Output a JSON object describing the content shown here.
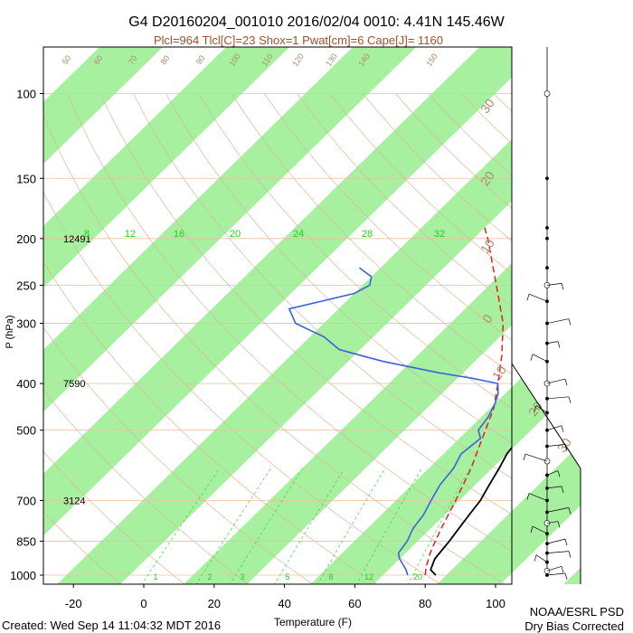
{
  "chart_data": {
    "type": "skew-t",
    "title": "G4 D20160204_001010 2016/02/04 0010:  4.41N 145.46W",
    "subtitle": "Plcl=964 Tlcl[C]=23 Shox=1 Pwat[cm]=6 Cape[J]= 1160",
    "xlabel": "Temperature (F)",
    "ylabel": "P (hPa)",
    "x_ticks": [
      "-20",
      "0",
      "20",
      "40",
      "60",
      "80",
      "100"
    ],
    "x_tick_values": [
      -20,
      0,
      20,
      40,
      60,
      80,
      100
    ],
    "y_ticks": [
      "100",
      "150",
      "200",
      "250",
      "300",
      "400",
      "500",
      "700",
      "850",
      "1000"
    ],
    "y_tick_values": [
      100,
      150,
      200,
      250,
      300,
      400,
      500,
      700,
      850,
      1000
    ],
    "xlim": [
      -29,
      113
    ],
    "ylim": [
      1050,
      100
    ],
    "height_labels": [
      {
        "pressure": 200,
        "label": "12491"
      },
      {
        "pressure": 400,
        "label": "7590"
      },
      {
        "pressure": 700,
        "label": "3124"
      }
    ],
    "skewed_temp_labels": [
      "8",
      "12",
      "16",
      "20",
      "24",
      "28",
      "32"
    ],
    "mixing_ratio_labels": [
      "1",
      "2",
      "3",
      "5",
      "8",
      "12",
      "20"
    ],
    "dry_adiabat_labels": [
      "50",
      "60",
      "70",
      "80",
      "90",
      "100",
      "110",
      "120",
      "130",
      "140",
      "150"
    ],
    "right_axis_labels": [
      "30",
      "20",
      "10",
      "0",
      "10",
      "20",
      "30"
    ],
    "temperature_series": [
      {
        "p": 1000,
        "t": 83
      },
      {
        "p": 975,
        "t": 80
      },
      {
        "p": 925,
        "t": 78
      },
      {
        "p": 850,
        "t": 77
      },
      {
        "p": 800,
        "t": 76
      },
      {
        "p": 750,
        "t": 75
      },
      {
        "p": 700,
        "t": 74
      },
      {
        "p": 650,
        "t": 72
      },
      {
        "p": 600,
        "t": 70
      },
      {
        "p": 560,
        "t": 68
      },
      {
        "p": 520,
        "t": 67
      },
      {
        "p": 500,
        "t": 68
      },
      {
        "p": 470,
        "t": 67
      },
      {
        "p": 440,
        "t": 66
      },
      {
        "p": 410,
        "t": 64
      },
      {
        "p": 380,
        "t": 61
      },
      {
        "p": 350,
        "t": 56
      },
      {
        "p": 320,
        "t": 50
      },
      {
        "p": 300,
        "t": 45
      },
      {
        "p": 280,
        "t": 40
      },
      {
        "p": 260,
        "t": 34
      },
      {
        "p": 240,
        "t": 28
      },
      {
        "p": 220,
        "t": 20
      },
      {
        "p": 200,
        "t": 12
      },
      {
        "p": 190,
        "t": 8
      }
    ],
    "dewpoint_series": [
      {
        "p": 1000,
        "t": 75
      },
      {
        "p": 975,
        "t": 73
      },
      {
        "p": 925,
        "t": 68
      },
      {
        "p": 900,
        "t": 66
      },
      {
        "p": 850,
        "t": 65
      },
      {
        "p": 800,
        "t": 63
      },
      {
        "p": 750,
        "t": 62
      },
      {
        "p": 700,
        "t": 60
      },
      {
        "p": 650,
        "t": 58
      },
      {
        "p": 600,
        "t": 57
      },
      {
        "p": 560,
        "t": 55
      },
      {
        "p": 520,
        "t": 56
      },
      {
        "p": 500,
        "t": 53
      },
      {
        "p": 470,
        "t": 52
      },
      {
        "p": 440,
        "t": 50
      },
      {
        "p": 420,
        "t": 48
      },
      {
        "p": 400,
        "t": 45
      },
      {
        "p": 390,
        "t": 36
      },
      {
        "p": 380,
        "t": 25
      },
      {
        "p": 360,
        "t": 6
      },
      {
        "p": 350,
        "t": -2
      },
      {
        "p": 340,
        "t": -10
      },
      {
        "p": 320,
        "t": -18
      },
      {
        "p": 300,
        "t": -30
      },
      {
        "p": 280,
        "t": -36
      },
      {
        "p": 260,
        "t": -22
      },
      {
        "p": 250,
        "t": -20
      },
      {
        "p": 240,
        "t": -22
      },
      {
        "p": 230,
        "t": -28
      }
    ],
    "parcel_series": [
      {
        "p": 1000,
        "t": 80
      },
      {
        "p": 964,
        "t": 78
      },
      {
        "p": 900,
        "t": 75
      },
      {
        "p": 850,
        "t": 73
      },
      {
        "p": 800,
        "t": 71
      },
      {
        "p": 700,
        "t": 67
      },
      {
        "p": 600,
        "t": 62
      },
      {
        "p": 500,
        "t": 55
      },
      {
        "p": 450,
        "t": 51
      },
      {
        "p": 400,
        "t": 45
      },
      {
        "p": 350,
        "t": 38
      },
      {
        "p": 300,
        "t": 29
      },
      {
        "p": 250,
        "t": 16
      },
      {
        "p": 200,
        "t": 0
      },
      {
        "p": 190,
        "t": -4
      }
    ],
    "series": [
      {
        "name": "",
        "color": "#000000"
      },
      {
        "name": "",
        "color": "#3a64d8"
      },
      {
        "name": "",
        "color": "#e02020"
      }
    ],
    "grid": true
  },
  "footer": {
    "created": "Created: Wed Sep 14 11:04:32 MDT 2016",
    "org": "NOAA/ESRL PSD",
    "note": "Dry Bias Corrected"
  },
  "colors": {
    "band_green": "#a6f0a0",
    "temperature": "#000000",
    "dewpoint": "#3a64d8",
    "parcel": "#e02020",
    "adiabat": "#d9b89a",
    "mixing_ratio": "#3cd23c"
  }
}
